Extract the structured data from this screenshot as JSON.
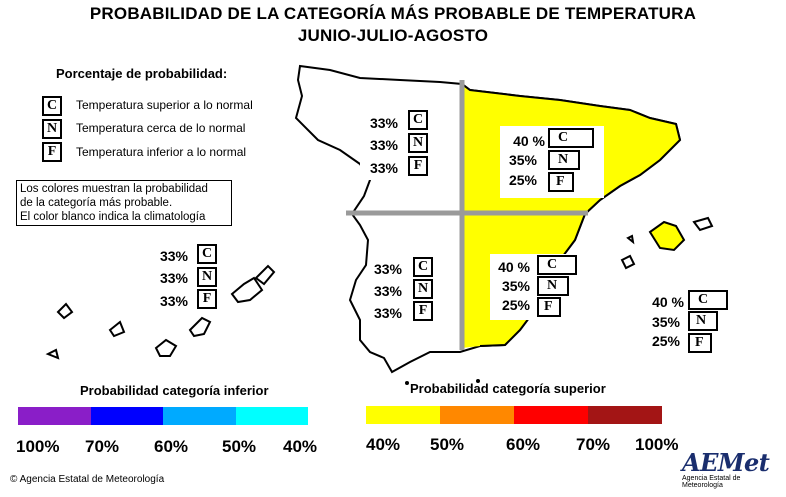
{
  "title": {
    "line1": "PROBABILIDAD DE LA CATEGORÍA MÁS PROBABLE DE TEMPERATURA",
    "line2": "JUNIO-JULIO-AGOSTO"
  },
  "legend": {
    "heading": "Porcentaje de probabilidad:",
    "items": [
      {
        "letter": "C",
        "label": "Temperatura superior a lo normal"
      },
      {
        "letter": "N",
        "label": "Temperatura cerca de lo normal"
      },
      {
        "letter": "F",
        "label": "Temperatura inferior a lo normal"
      }
    ],
    "note": [
      "Los colores muestran la probabilidad",
      "de la categoría más probable.",
      "El color blanco indica la climatología"
    ]
  },
  "regions": {
    "northwest": {
      "C": "33%",
      "N": "33%",
      "F": "33%"
    },
    "northeast": {
      "C": "40 %",
      "N": "35%",
      "F": "25%"
    },
    "southwest": {
      "C": "33%",
      "N": "33%",
      "F": "33%"
    },
    "southeast": {
      "C": "40 %",
      "N": "35%",
      "F": "25%"
    },
    "canarias": {
      "C": "33%",
      "N": "33%",
      "F": "33%"
    },
    "baleares": {
      "C": "40 %",
      "N": "35%",
      "F": "25%"
    }
  },
  "scales": {
    "lower": {
      "title": "Probabilidad categoría inferior",
      "colors": [
        "#8a1ec8",
        "#0000ff",
        "#00aaff",
        "#00ffff"
      ],
      "labels": [
        "100%",
        "70%",
        "60%",
        "50%",
        "40%"
      ]
    },
    "upper": {
      "title": "Probabilidad categoría superior",
      "colors": [
        "#ffff00",
        "#ff8800",
        "#ff0000",
        "#a31515"
      ],
      "labels": [
        "40%",
        "50%",
        "60%",
        "70%",
        "100%"
      ]
    }
  },
  "map_colors": {
    "yellow": "#ffff00",
    "divider": "#9a9a9a"
  },
  "footer": {
    "copyright": "© Agencia Estatal de Meteorología",
    "logo": "AEMet",
    "logo_sub": "Agencia Estatal de Meteorología"
  }
}
